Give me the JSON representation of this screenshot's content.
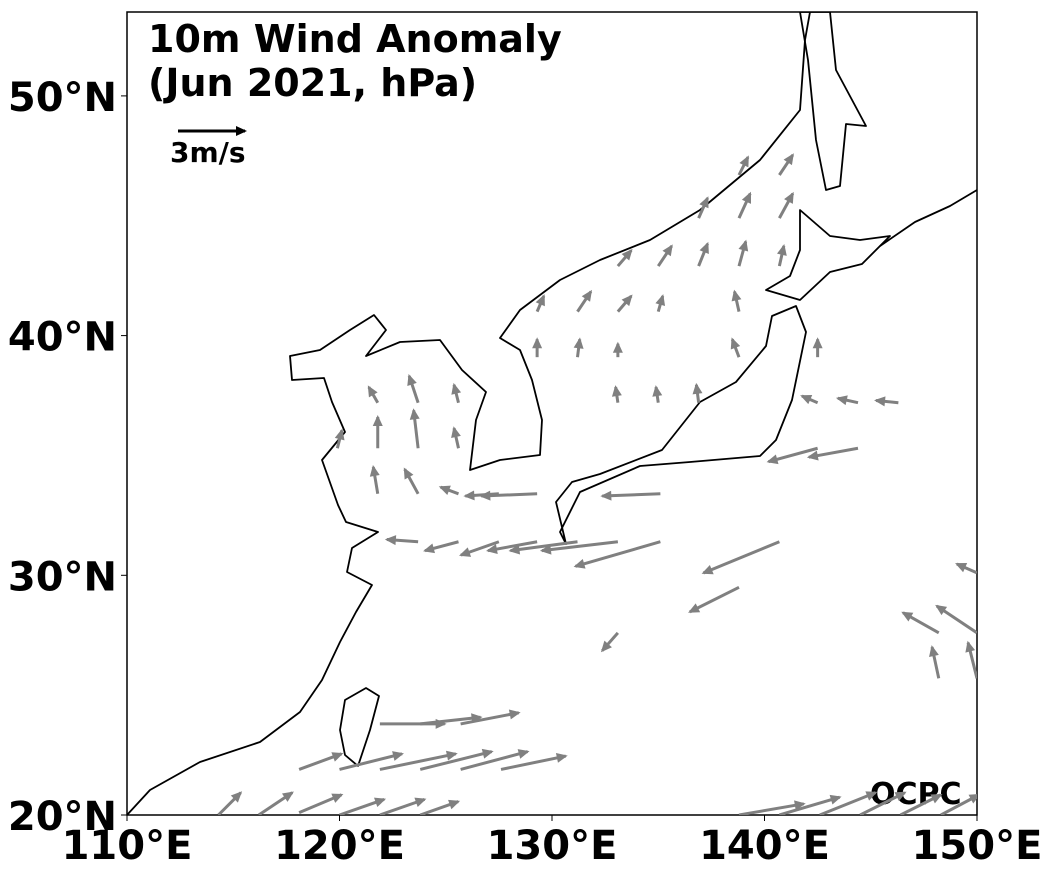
{
  "chart_data": {
    "type": "quiver",
    "title": "10m Wind Anomaly",
    "subtitle": "(Jun 2021, hPa)",
    "reference_vector": {
      "value": 3,
      "label": "3m/s"
    },
    "watermark": "OCPC",
    "xlim": [
      110,
      150
    ],
    "ylim": [
      20,
      53.5
    ],
    "xticks": [
      {
        "value": 110,
        "label": "110°E"
      },
      {
        "value": 120,
        "label": "120°E"
      },
      {
        "value": 130,
        "label": "130°E"
      },
      {
        "value": 140,
        "label": "140°E"
      },
      {
        "value": 150,
        "label": "150°E"
      }
    ],
    "yticks": [
      {
        "value": 20,
        "label": "20°N"
      },
      {
        "value": 30,
        "label": "30°N"
      },
      {
        "value": 40,
        "label": "40°N"
      },
      {
        "value": 50,
        "label": "50°N"
      }
    ],
    "color": "#808080",
    "lon": [
      114.3,
      116.2,
      118.1,
      120.0,
      121.9,
      123.8,
      118.1,
      120.0,
      121.9,
      123.8,
      125.7,
      127.6,
      121.9,
      123.8,
      125.7,
      138.8,
      140.7,
      142.6,
      144.5,
      146.4,
      148.3,
      133.1,
      138.8,
      140.7,
      135.1,
      133.1,
      131.2,
      129.3,
      127.5,
      125.6,
      123.7,
      135.1,
      129.3,
      127.5,
      125.6,
      123.7,
      121.8,
      144.4,
      142.5,
      146.3,
      144.4,
      142.5,
      136.9,
      135.0,
      133.1,
      125.6,
      123.7,
      121.8,
      119.9,
      125.6,
      123.7,
      121.8,
      142.5,
      138.8,
      133.1,
      131.2,
      129.3,
      138.8,
      135.0,
      133.1,
      131.2,
      129.3,
      140.7,
      138.8,
      136.9,
      135.0,
      133.1,
      140.7,
      138.8,
      136.9,
      140.7,
      138.8,
      148.2,
      150.0,
      148.2,
      150.0,
      150.0
    ],
    "lat": [
      20.0,
      20.0,
      20.1,
      20.0,
      20.0,
      20.0,
      21.9,
      21.9,
      21.9,
      21.9,
      21.9,
      21.9,
      23.8,
      23.8,
      23.8,
      20.0,
      20.0,
      20.0,
      20.0,
      20.0,
      20.0,
      27.6,
      29.5,
      31.4,
      31.4,
      31.4,
      31.4,
      31.4,
      31.4,
      31.4,
      31.4,
      33.4,
      33.4,
      33.4,
      33.4,
      33.4,
      33.4,
      35.3,
      35.3,
      37.2,
      37.2,
      37.2,
      37.2,
      37.2,
      37.2,
      35.3,
      35.3,
      35.3,
      35.3,
      37.2,
      37.2,
      37.2,
      39.1,
      39.1,
      39.1,
      39.1,
      39.1,
      41.0,
      41.0,
      41.0,
      41.0,
      41.0,
      42.9,
      42.9,
      42.9,
      42.9,
      42.9,
      44.9,
      44.9,
      44.9,
      46.7,
      46.7,
      27.6,
      27.6,
      25.7,
      25.7,
      30.1
    ],
    "u": [
      1.0,
      1.5,
      1.9,
      2.0,
      2.0,
      1.7,
      1.9,
      2.8,
      3.4,
      3.2,
      3.0,
      2.9,
      2.9,
      2.7,
      2.6,
      2.9,
      2.7,
      2.5,
      2.0,
      1.8,
      1.7,
      -0.7,
      -2.2,
      -3.4,
      -3.8,
      -3.4,
      -3.0,
      -2.2,
      -1.7,
      -1.5,
      -1.4,
      -2.6,
      -2.5,
      -1.5,
      -0.8,
      -0.6,
      -0.2,
      -2.2,
      -2.2,
      -1.0,
      -0.9,
      -0.7,
      -0.1,
      -0.1,
      -0.1,
      -0.2,
      -0.2,
      0,
      0.2,
      -0.2,
      -0.4,
      -0.4,
      0,
      -0.3,
      0,
      0.1,
      0,
      -0.2,
      0.2,
      0.6,
      0.6,
      0.3,
      0.2,
      0.3,
      0.4,
      0.6,
      0.6,
      0.6,
      0.5,
      0.4,
      0.6,
      0.4,
      -1.6,
      -1.8,
      -0.3,
      -0.4,
      -0.9
    ],
    "v": [
      1.0,
      1.0,
      0.8,
      0.7,
      0.7,
      0.6,
      0.7,
      0.7,
      0.7,
      0.8,
      0.8,
      0.6,
      0,
      0.3,
      0.5,
      0.5,
      0.8,
      1.0,
      1.0,
      0.9,
      0.9,
      -0.8,
      -1.1,
      -1.4,
      -1.1,
      -0.4,
      -0.4,
      -0.4,
      -0.6,
      -0.4,
      0.1,
      -0.1,
      -0.1,
      -0.1,
      0.3,
      1.1,
      1.2,
      -0.4,
      -0.6,
      0.1,
      0.2,
      0.3,
      0.8,
      0.7,
      0.7,
      0.9,
      1.7,
      1.4,
      0.8,
      0.8,
      1.2,
      0.7,
      0.8,
      0.8,
      0.6,
      0.8,
      0.8,
      0.9,
      0.7,
      0.7,
      0.9,
      0.7,
      0.9,
      1.1,
      1.0,
      0.9,
      0.7,
      1.1,
      1.1,
      0.9,
      0.9,
      0.8,
      0.9,
      1.2,
      1.4,
      1.6,
      0.4
    ]
  }
}
